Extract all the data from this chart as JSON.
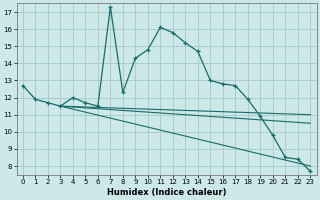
{
  "title": "",
  "xlabel": "Humidex (Indice chaleur)",
  "bg_color": "#cce8e8",
  "grid_color": "#aacccc",
  "line_color": "#1a6b6b",
  "xlim": [
    -0.5,
    23.5
  ],
  "ylim": [
    7.5,
    17.5
  ],
  "xticks": [
    0,
    1,
    2,
    3,
    4,
    5,
    6,
    7,
    8,
    9,
    10,
    11,
    12,
    13,
    14,
    15,
    16,
    17,
    18,
    19,
    20,
    21,
    22,
    23
  ],
  "yticks": [
    8,
    9,
    10,
    11,
    12,
    13,
    14,
    15,
    16,
    17
  ],
  "line1_x": [
    0,
    1,
    2,
    3,
    4,
    5,
    6,
    7,
    8,
    9,
    10,
    11,
    12,
    13,
    14,
    15,
    16,
    17,
    18,
    19,
    20,
    21,
    22,
    23
  ],
  "line1_y": [
    12.7,
    11.9,
    11.7,
    11.5,
    12.0,
    11.7,
    11.5,
    17.3,
    12.3,
    14.3,
    14.8,
    16.1,
    15.8,
    15.2,
    14.7,
    13.0,
    12.8,
    12.7,
    11.9,
    10.9,
    9.8,
    8.5,
    8.4,
    7.7
  ],
  "line2_x": [
    3,
    23
  ],
  "line2_y": [
    11.5,
    11.0
  ],
  "line3_x": [
    3,
    23
  ],
  "line3_y": [
    11.5,
    10.5
  ],
  "line4_x": [
    3,
    23
  ],
  "line4_y": [
    11.5,
    8.0
  ]
}
